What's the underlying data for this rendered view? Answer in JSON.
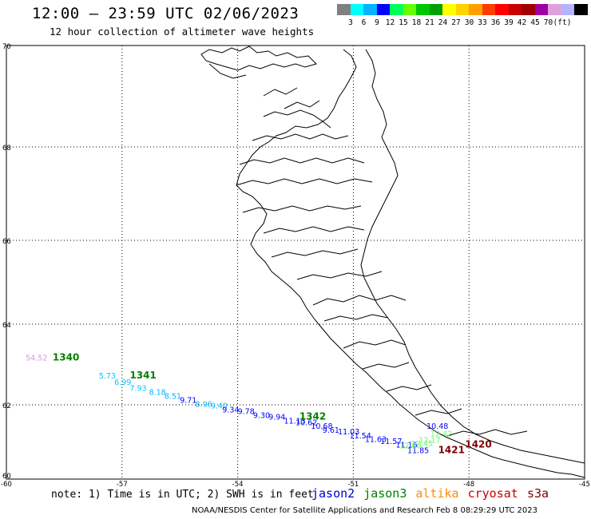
{
  "header": {
    "title": "12:00 – 23:59 UTC 02/06/2023",
    "subtitle": "12 hour collection of altimeter wave heights"
  },
  "color_scale": {
    "unit": "(ft)",
    "colors": [
      "#808080",
      "#00ffff",
      "#00b4ff",
      "#0000ff",
      "#00ff5a",
      "#64ff00",
      "#00c800",
      "#00a000",
      "#ffff00",
      "#ffd200",
      "#ffa000",
      "#ff3c00",
      "#ff0000",
      "#c80000",
      "#a00000",
      "#a000a0",
      "#e0a0e0",
      "#b4b4ff",
      "#000000"
    ],
    "labels": [
      "3",
      "6",
      "9",
      "12",
      "15",
      "18",
      "21",
      "24",
      "27",
      "30",
      "33",
      "36",
      "39",
      "42",
      "45",
      "70"
    ]
  },
  "axes": {
    "lon_ticks": [
      "-60",
      "-57",
      "-54",
      "-51",
      "-48",
      "-45"
    ],
    "lat_ticks": [
      "70",
      "68",
      "66",
      "64",
      "62",
      "60"
    ]
  },
  "swh_labels": [
    {
      "text": "54.52",
      "lon": -59.5,
      "lat": 63.1,
      "color": "#e090e0"
    },
    {
      "text": "5.73",
      "lon": -57.6,
      "lat": 62.65,
      "color": "#00c8ff"
    },
    {
      "text": "6.99",
      "lon": -57.2,
      "lat": 62.5,
      "color": "#00c8ff"
    },
    {
      "text": "7.93",
      "lon": -56.8,
      "lat": 62.35,
      "color": "#00c8ff"
    },
    {
      "text": "8.18",
      "lon": -56.3,
      "lat": 62.25,
      "color": "#00b4ff"
    },
    {
      "text": "8.51",
      "lon": -55.9,
      "lat": 62.15,
      "color": "#00b4ff"
    },
    {
      "text": "9.71",
      "lon": -55.5,
      "lat": 62.05,
      "color": "#0000ff"
    },
    {
      "text": "8.96",
      "lon": -55.1,
      "lat": 61.95,
      "color": "#00b4ff"
    },
    {
      "text": "9.40",
      "lon": -54.7,
      "lat": 61.9,
      "color": "#00b4ff"
    },
    {
      "text": "9.34",
      "lon": -54.4,
      "lat": 61.8,
      "color": "#0000ff"
    },
    {
      "text": "9.78",
      "lon": -54.0,
      "lat": 61.75,
      "color": "#0000ff"
    },
    {
      "text": "9.30",
      "lon": -53.6,
      "lat": 61.65,
      "color": "#0000ff"
    },
    {
      "text": "9.94",
      "lon": -53.2,
      "lat": 61.6,
      "color": "#0000ff"
    },
    {
      "text": "11.13",
      "lon": -52.8,
      "lat": 61.5,
      "color": "#0000ff"
    },
    {
      "text": "10.62",
      "lon": -52.5,
      "lat": 61.45,
      "color": "#0000ff"
    },
    {
      "text": "10.68",
      "lon": -52.1,
      "lat": 61.35,
      "color": "#0000ff"
    },
    {
      "text": "9.61",
      "lon": -51.8,
      "lat": 61.25,
      "color": "#0000ff"
    },
    {
      "text": "11.03",
      "lon": -51.4,
      "lat": 61.2,
      "color": "#0000ff"
    },
    {
      "text": "11.54",
      "lon": -51.1,
      "lat": 61.1,
      "color": "#0000ff"
    },
    {
      "text": "11.63",
      "lon": -50.7,
      "lat": 61.0,
      "color": "#0000ff"
    },
    {
      "text": "11.57",
      "lon": -50.3,
      "lat": 60.95,
      "color": "#0000ff"
    },
    {
      "text": "11.16",
      "lon": -49.9,
      "lat": 60.85,
      "color": "#0000ff"
    },
    {
      "text": "11.85",
      "lon": -49.6,
      "lat": 60.7,
      "color": "#0000ff"
    },
    {
      "text": "10.48",
      "lon": -49.1,
      "lat": 61.35,
      "color": "#0000ff"
    },
    {
      "text": "12.42",
      "lon": -49.0,
      "lat": 61.15,
      "color": "#64ff64"
    },
    {
      "text": "12.17",
      "lon": -49.3,
      "lat": 60.98,
      "color": "#64ff64"
    },
    {
      "text": "12.45",
      "lon": -49.5,
      "lat": 60.88,
      "color": "#64ff64"
    },
    {
      "text": "12.80",
      "lon": -49.8,
      "lat": 60.83,
      "color": "#64ff64"
    }
  ],
  "pass_labels": [
    {
      "text": "1340",
      "lon": -58.8,
      "lat": 63.1,
      "color": "#008000"
    },
    {
      "text": "1341",
      "lon": -56.8,
      "lat": 62.65,
      "color": "#008000"
    },
    {
      "text": "1342",
      "lon": -52.4,
      "lat": 61.6,
      "color": "#008000"
    },
    {
      "text": "1420",
      "lon": -48.1,
      "lat": 60.85,
      "color": "#800000"
    },
    {
      "text": "1421",
      "lon": -48.8,
      "lat": 60.7,
      "color": "#800000"
    }
  ],
  "footer": {
    "note": "note: 1) Time is in UTC; 2) SWH is in feet",
    "missions": [
      {
        "name": "jason2",
        "color": "#0000c8"
      },
      {
        "name": "jason3",
        "color": "#008000"
      },
      {
        "name": "altika",
        "color": "#ff8c00"
      },
      {
        "name": "cryosat",
        "color": "#c80000"
      },
      {
        "name": "s3a",
        "color": "#800000"
      }
    ],
    "credit": "NOAA/NESDIS Center for Satellite Applications and Research   Feb  8 08:29:29 UTC 2023"
  }
}
